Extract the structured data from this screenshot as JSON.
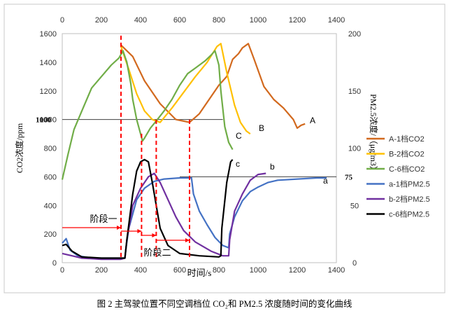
{
  "caption": "图 2 主驾驶位置不同空调档位 CO₂和 PM2.5 浓度随时间的变化曲线",
  "chart_data": {
    "type": "line",
    "x_axis": {
      "label": "时间/s",
      "range": [
        0,
        1400
      ],
      "ticks": [
        "0",
        "200",
        "400",
        "600",
        "800",
        "1000",
        "1200",
        "1400"
      ]
    },
    "x_axis_top": {
      "range": [
        0,
        1400
      ],
      "ticks": [
        "0",
        "200",
        "400",
        "600",
        "800",
        "1000",
        "1200",
        "1400"
      ]
    },
    "y_axis_left": {
      "label": "CO2浓度/ppm",
      "range": [
        0,
        1600
      ],
      "ticks": [
        "0",
        "200",
        "400",
        "600",
        "800",
        "1000",
        "1200",
        "1400",
        "1600"
      ]
    },
    "y_axis_right": {
      "label": "PM2.5浓度/（μg/m3）",
      "range": [
        0,
        200
      ],
      "ticks": [
        "0",
        "50",
        "100",
        "150",
        "200"
      ]
    },
    "reference_lines": [
      {
        "axis": "left",
        "value": 1000,
        "label": "1000"
      },
      {
        "axis": "right",
        "value": 75,
        "label": "75"
      }
    ],
    "grid": false,
    "legend_position": "right",
    "series": [
      {
        "name": "A-1档CO2",
        "axis": "left",
        "color": "#D2691E",
        "end_label": "A",
        "points": [
          [
            300,
            1520
          ],
          [
            360,
            1440
          ],
          [
            420,
            1270
          ],
          [
            500,
            1110
          ],
          [
            580,
            1000
          ],
          [
            650,
            980
          ],
          [
            700,
            1040
          ],
          [
            750,
            1140
          ],
          [
            800,
            1240
          ],
          [
            840,
            1300
          ],
          [
            870,
            1420
          ],
          [
            900,
            1460
          ],
          [
            920,
            1500
          ],
          [
            950,
            1530
          ],
          [
            980,
            1420
          ],
          [
            1030,
            1230
          ],
          [
            1080,
            1140
          ],
          [
            1130,
            1080
          ],
          [
            1180,
            1000
          ],
          [
            1200,
            940
          ],
          [
            1220,
            960
          ],
          [
            1240,
            970
          ]
        ]
      },
      {
        "name": "B-2档CO2",
        "axis": "left",
        "color": "#FFC000",
        "end_label": "B",
        "points": [
          [
            300,
            1510
          ],
          [
            340,
            1350
          ],
          [
            380,
            1180
          ],
          [
            420,
            1060
          ],
          [
            460,
            1000
          ],
          [
            500,
            980
          ],
          [
            560,
            1080
          ],
          [
            620,
            1190
          ],
          [
            680,
            1300
          ],
          [
            740,
            1400
          ],
          [
            790,
            1510
          ],
          [
            810,
            1530
          ],
          [
            840,
            1330
          ],
          [
            880,
            1100
          ],
          [
            910,
            980
          ],
          [
            940,
            920
          ],
          [
            960,
            900
          ]
        ]
      },
      {
        "name": "C-6档CO2",
        "axis": "left",
        "color": "#70AD47",
        "end_label": "C",
        "points": [
          [
            0,
            580
          ],
          [
            30,
            760
          ],
          [
            60,
            930
          ],
          [
            100,
            1060
          ],
          [
            150,
            1220
          ],
          [
            200,
            1300
          ],
          [
            250,
            1380
          ],
          [
            290,
            1430
          ],
          [
            310,
            1480
          ],
          [
            330,
            1400
          ],
          [
            350,
            1250
          ],
          [
            360,
            1140
          ],
          [
            380,
            1000
          ],
          [
            400,
            900
          ],
          [
            410,
            850
          ],
          [
            420,
            870
          ],
          [
            450,
            940
          ],
          [
            480,
            990
          ],
          [
            520,
            1060
          ],
          [
            560,
            1140
          ],
          [
            600,
            1240
          ],
          [
            640,
            1320
          ],
          [
            680,
            1360
          ],
          [
            730,
            1410
          ],
          [
            760,
            1450
          ],
          [
            780,
            1480
          ],
          [
            800,
            1380
          ],
          [
            810,
            1200
          ],
          [
            830,
            950
          ],
          [
            850,
            840
          ],
          [
            870,
            790
          ]
        ]
      },
      {
        "name": "a-1档PM2.5",
        "axis": "right",
        "color": "#4472C4",
        "end_label": "a",
        "points": [
          [
            0,
            17
          ],
          [
            20,
            21
          ],
          [
            40,
            11
          ],
          [
            80,
            6
          ],
          [
            150,
            4
          ],
          [
            250,
            4
          ],
          [
            300,
            4
          ],
          [
            320,
            4
          ],
          [
            325,
            12
          ],
          [
            340,
            30
          ],
          [
            380,
            55
          ],
          [
            420,
            65
          ],
          [
            470,
            71
          ],
          [
            520,
            73
          ],
          [
            600,
            74
          ],
          [
            660,
            74
          ],
          [
            670,
            60
          ],
          [
            700,
            45
          ],
          [
            740,
            33
          ],
          [
            780,
            22
          ],
          [
            820,
            15
          ],
          [
            850,
            13
          ],
          [
            855,
            25
          ],
          [
            880,
            40
          ],
          [
            920,
            54
          ],
          [
            960,
            62
          ],
          [
            1000,
            66
          ],
          [
            1050,
            70
          ],
          [
            1100,
            72
          ],
          [
            1200,
            73
          ],
          [
            1300,
            74
          ],
          [
            1350,
            74
          ]
        ]
      },
      {
        "name": "b-2档PM2.5",
        "axis": "right",
        "color": "#7030A0",
        "end_label": "b",
        "points": [
          [
            0,
            8
          ],
          [
            50,
            6
          ],
          [
            100,
            4
          ],
          [
            200,
            3
          ],
          [
            300,
            3
          ],
          [
            320,
            4
          ],
          [
            330,
            20
          ],
          [
            360,
            50
          ],
          [
            400,
            65
          ],
          [
            440,
            75
          ],
          [
            470,
            78
          ],
          [
            500,
            70
          ],
          [
            540,
            55
          ],
          [
            580,
            40
          ],
          [
            620,
            28
          ],
          [
            680,
            18
          ],
          [
            760,
            10
          ],
          [
            820,
            6
          ],
          [
            850,
            6
          ],
          [
            855,
            20
          ],
          [
            880,
            45
          ],
          [
            920,
            60
          ],
          [
            960,
            72
          ],
          [
            1000,
            77
          ],
          [
            1040,
            78
          ]
        ]
      },
      {
        "name": "c-6档PM2.5",
        "axis": "right",
        "color": "#000000",
        "end_label": "c",
        "points": [
          [
            0,
            15
          ],
          [
            20,
            16
          ],
          [
            50,
            10
          ],
          [
            100,
            5
          ],
          [
            200,
            4
          ],
          [
            300,
            4
          ],
          [
            320,
            4
          ],
          [
            330,
            20
          ],
          [
            360,
            60
          ],
          [
            380,
            80
          ],
          [
            400,
            88
          ],
          [
            420,
            90
          ],
          [
            440,
            88
          ],
          [
            460,
            70
          ],
          [
            480,
            50
          ],
          [
            500,
            30
          ],
          [
            540,
            15
          ],
          [
            600,
            8
          ],
          [
            700,
            6
          ],
          [
            800,
            5
          ],
          [
            810,
            6
          ],
          [
            815,
            30
          ],
          [
            840,
            70
          ],
          [
            860,
            88
          ],
          [
            870,
            90
          ]
        ]
      }
    ],
    "annotations": [
      {
        "text": "阶段一",
        "x": 160,
        "y": 230
      },
      {
        "text": "阶段二",
        "x": 470,
        "y": 20
      }
    ],
    "markers": [
      {
        "kind": "vertical_dashed",
        "color": "#FF0000",
        "x": 300,
        "from_right": 5,
        "to_left": 1600
      },
      {
        "kind": "vertical_dashed",
        "color": "#FF0000",
        "x": 405,
        "from_right": 5,
        "to_left": 910
      },
      {
        "kind": "vertical_dashed",
        "color": "#FF0000",
        "x": 480,
        "from_right": 5,
        "to_left": 1000
      },
      {
        "kind": "vertical_dashed",
        "color": "#FF0000",
        "x": 650,
        "from_right": 5,
        "to_left": 1000
      }
    ]
  }
}
